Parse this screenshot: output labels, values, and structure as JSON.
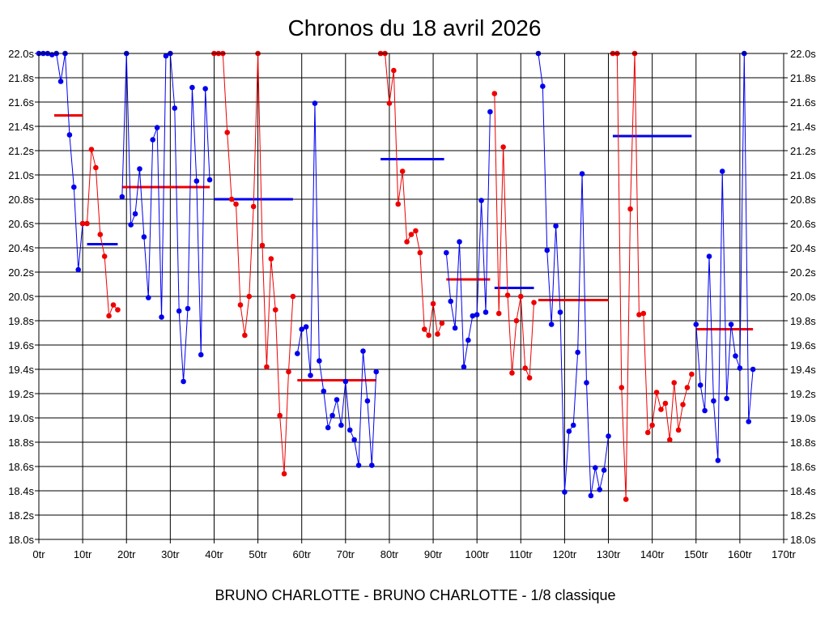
{
  "chart_data": {
    "type": "line",
    "title": "Chronos du 18 avril 2026",
    "subtitle": "BRUNO CHARLOTTE - BRUNO CHARLOTTE - 1/8 classique",
    "xlim": [
      0,
      170
    ],
    "ylim": [
      18.0,
      22.0
    ],
    "x_ticks": [
      0,
      10,
      20,
      30,
      40,
      50,
      60,
      70,
      80,
      90,
      100,
      110,
      120,
      130,
      140,
      150,
      160,
      170
    ],
    "x_tick_labels": [
      "0tr",
      "10tr",
      "20tr",
      "30tr",
      "40tr",
      "50tr",
      "60tr",
      "70tr",
      "80tr",
      "90tr",
      "100tr",
      "110tr",
      "120tr",
      "130tr",
      "140tr",
      "150tr",
      "160tr",
      "170tr"
    ],
    "y_ticks": [
      18.0,
      18.2,
      18.4,
      18.6,
      18.8,
      19.0,
      19.2,
      19.4,
      19.6,
      19.8,
      20.0,
      20.2,
      20.4,
      20.6,
      20.8,
      21.0,
      21.2,
      21.4,
      21.6,
      21.8,
      22.0
    ],
    "y_tick_labels": [
      "18.0s",
      "18.2s",
      "18.4s",
      "18.6s",
      "18.8s",
      "19.0s",
      "19.2s",
      "19.4s",
      "19.6s",
      "19.8s",
      "20.0s",
      "20.2s",
      "20.4s",
      "20.6s",
      "20.8s",
      "21.0s",
      "21.2s",
      "21.4s",
      "21.6s",
      "21.8s",
      "22.0s"
    ],
    "grid": true,
    "colors": {
      "blue": "#0000ee",
      "red": "#ee0000",
      "grid": "#000000"
    },
    "series": [
      {
        "color": "blue",
        "points": [
          [
            0,
            22.0
          ],
          [
            1,
            22.0
          ],
          [
            2,
            22.0
          ],
          [
            3,
            21.99
          ],
          [
            4,
            22.0
          ],
          [
            5,
            21.77
          ],
          [
            6,
            22.0
          ],
          [
            7,
            21.33
          ],
          [
            8,
            20.9
          ],
          [
            9,
            20.22
          ],
          [
            10,
            20.6
          ]
        ]
      },
      {
        "color": "red",
        "points": [
          [
            10,
            20.6
          ],
          [
            11,
            20.6
          ],
          [
            12,
            21.21
          ],
          [
            13,
            21.06
          ],
          [
            14,
            20.51
          ],
          [
            15,
            20.33
          ],
          [
            16,
            19.84
          ],
          [
            17,
            19.93
          ],
          [
            18,
            19.89
          ]
        ]
      },
      {
        "color": "blue",
        "points": [
          [
            19,
            20.82
          ],
          [
            20,
            22.0
          ],
          [
            21,
            20.59
          ],
          [
            22,
            20.68
          ],
          [
            23,
            21.05
          ],
          [
            24,
            20.49
          ],
          [
            25,
            19.99
          ],
          [
            26,
            21.29
          ],
          [
            27,
            21.39
          ],
          [
            28,
            19.83
          ],
          [
            29,
            21.98
          ],
          [
            30,
            22.0
          ],
          [
            31,
            21.55
          ],
          [
            32,
            19.88
          ],
          [
            33,
            19.3
          ],
          [
            34,
            19.9
          ],
          [
            35,
            21.72
          ],
          [
            36,
            20.95
          ],
          [
            37,
            19.52
          ],
          [
            38,
            21.71
          ],
          [
            39,
            20.96
          ]
        ]
      },
      {
        "color": "red",
        "points": [
          [
            40,
            22.0
          ],
          [
            41,
            22.0
          ],
          [
            42,
            22.0
          ],
          [
            43,
            21.35
          ],
          [
            44,
            20.8
          ],
          [
            45,
            20.76
          ],
          [
            46,
            19.93
          ],
          [
            47,
            19.68
          ],
          [
            48,
            20.0
          ],
          [
            49,
            20.74
          ],
          [
            50,
            22.0
          ],
          [
            51,
            20.42
          ],
          [
            52,
            19.42
          ],
          [
            53,
            20.31
          ],
          [
            54,
            19.89
          ],
          [
            55,
            19.02
          ],
          [
            56,
            18.54
          ],
          [
            57,
            19.38
          ],
          [
            58,
            20.0
          ]
        ]
      },
      {
        "color": "blue",
        "points": [
          [
            59,
            19.53
          ],
          [
            60,
            19.73
          ],
          [
            61,
            19.75
          ],
          [
            62,
            19.35
          ],
          [
            63,
            21.59
          ],
          [
            64,
            19.47
          ],
          [
            65,
            19.22
          ],
          [
            66,
            18.92
          ],
          [
            67,
            19.02
          ],
          [
            68,
            19.15
          ],
          [
            69,
            18.94
          ],
          [
            70,
            19.3
          ],
          [
            71,
            18.9
          ],
          [
            72,
            18.82
          ],
          [
            73,
            18.61
          ],
          [
            74,
            19.55
          ],
          [
            75,
            19.14
          ],
          [
            76,
            18.61
          ],
          [
            77,
            19.38
          ]
        ]
      },
      {
        "color": "red",
        "points": [
          [
            78,
            22.0
          ],
          [
            79,
            22.0
          ],
          [
            80,
            21.59
          ],
          [
            81,
            21.86
          ],
          [
            82,
            20.76
          ],
          [
            83,
            21.03
          ],
          [
            84,
            20.45
          ],
          [
            85,
            20.51
          ],
          [
            86,
            20.54
          ],
          [
            87,
            20.36
          ],
          [
            88,
            19.73
          ],
          [
            89,
            19.68
          ],
          [
            90,
            19.94
          ],
          [
            91,
            19.69
          ],
          [
            92,
            19.78
          ]
        ]
      },
      {
        "color": "blue",
        "points": [
          [
            93,
            20.36
          ],
          [
            94,
            19.96
          ],
          [
            95,
            19.74
          ],
          [
            96,
            20.45
          ],
          [
            97,
            19.42
          ],
          [
            98,
            19.64
          ],
          [
            99,
            19.84
          ],
          [
            100,
            19.85
          ],
          [
            101,
            20.79
          ],
          [
            102,
            19.87
          ],
          [
            103,
            21.52
          ]
        ]
      },
      {
        "color": "red",
        "points": [
          [
            104,
            21.67
          ],
          [
            105,
            19.86
          ],
          [
            106,
            21.23
          ],
          [
            107,
            20.01
          ],
          [
            108,
            19.37
          ],
          [
            109,
            19.8
          ],
          [
            110,
            20.0
          ],
          [
            111,
            19.41
          ],
          [
            112,
            19.33
          ],
          [
            113,
            19.95
          ]
        ]
      },
      {
        "color": "blue",
        "points": [
          [
            114,
            22.0
          ],
          [
            115,
            21.73
          ],
          [
            116,
            20.38
          ],
          [
            117,
            19.77
          ],
          [
            118,
            20.58
          ],
          [
            119,
            19.87
          ],
          [
            120,
            18.39
          ],
          [
            121,
            18.89
          ],
          [
            122,
            18.94
          ],
          [
            123,
            19.54
          ],
          [
            124,
            21.01
          ],
          [
            125,
            19.29
          ],
          [
            126,
            18.36
          ],
          [
            127,
            18.59
          ],
          [
            128,
            18.41
          ],
          [
            129,
            18.57
          ],
          [
            130,
            18.85
          ]
        ]
      },
      {
        "color": "red",
        "points": [
          [
            131,
            22.0
          ],
          [
            132,
            22.0
          ],
          [
            133,
            19.25
          ],
          [
            134,
            18.33
          ],
          [
            135,
            20.72
          ],
          [
            136,
            22.0
          ],
          [
            137,
            19.85
          ],
          [
            138,
            19.86
          ],
          [
            139,
            18.88
          ],
          [
            140,
            18.94
          ],
          [
            141,
            19.21
          ],
          [
            142,
            19.07
          ],
          [
            143,
            19.12
          ],
          [
            144,
            18.82
          ],
          [
            145,
            19.29
          ],
          [
            146,
            18.9
          ],
          [
            147,
            19.11
          ],
          [
            148,
            19.25
          ],
          [
            149,
            19.36
          ]
        ]
      },
      {
        "color": "blue",
        "points": [
          [
            150,
            19.77
          ],
          [
            151,
            19.27
          ],
          [
            152,
            19.06
          ],
          [
            153,
            20.33
          ],
          [
            154,
            19.14
          ],
          [
            155,
            18.65
          ],
          [
            156,
            21.03
          ],
          [
            157,
            19.16
          ],
          [
            158,
            19.77
          ],
          [
            159,
            19.51
          ],
          [
            160,
            19.41
          ],
          [
            161,
            22.0
          ],
          [
            162,
            18.97
          ],
          [
            163,
            19.4
          ]
        ]
      }
    ],
    "averages": [
      {
        "color": "red",
        "x": [
          3.5,
          10
        ],
        "y": 21.49
      },
      {
        "color": "blue",
        "x": [
          11,
          18
        ],
        "y": 20.43
      },
      {
        "color": "red",
        "x": [
          19,
          39
        ],
        "y": 20.9
      },
      {
        "color": "blue",
        "x": [
          40,
          58
        ],
        "y": 20.8
      },
      {
        "color": "red",
        "x": [
          59,
          77
        ],
        "y": 19.31
      },
      {
        "color": "blue",
        "x": [
          78,
          92.5
        ],
        "y": 21.13
      },
      {
        "color": "red",
        "x": [
          93,
          103
        ],
        "y": 20.14
      },
      {
        "color": "blue",
        "x": [
          104,
          113
        ],
        "y": 20.07
      },
      {
        "color": "red",
        "x": [
          114,
          130
        ],
        "y": 19.97
      },
      {
        "color": "blue",
        "x": [
          131,
          149
        ],
        "y": 21.32
      },
      {
        "color": "red",
        "x": [
          150,
          163
        ],
        "y": 19.73
      }
    ]
  }
}
